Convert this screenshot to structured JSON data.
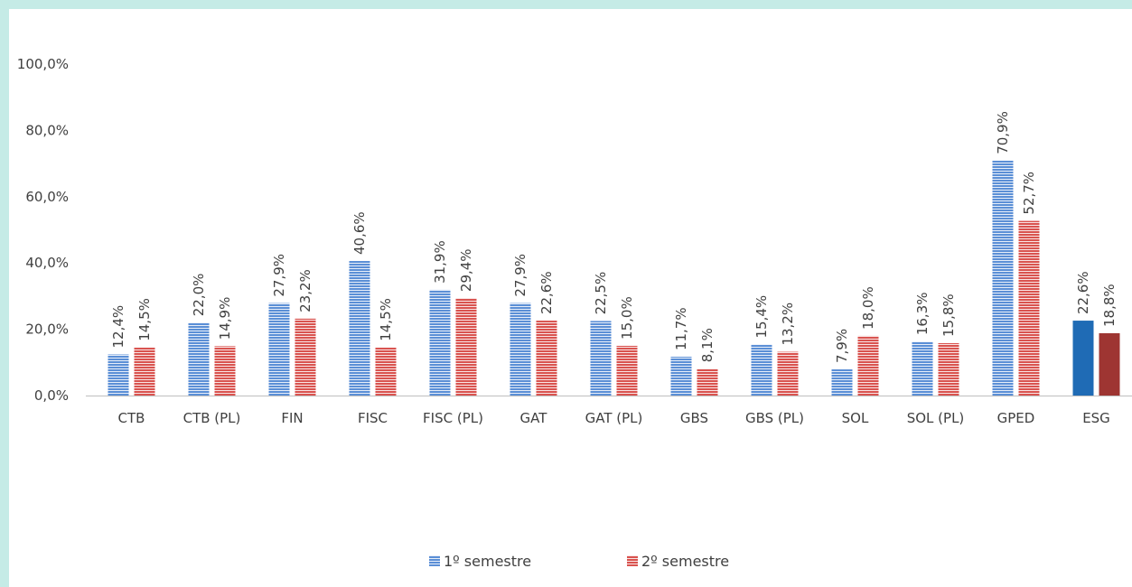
{
  "chart_data": {
    "type": "bar",
    "title": "",
    "xlabel": "",
    "ylabel": "",
    "ylim": [
      0,
      100
    ],
    "y_ticks": [
      "0,0%",
      "20,0%",
      "40,0%",
      "60,0%",
      "80,0%",
      "100,0%"
    ],
    "categories": [
      "CTB",
      "CTB (PL)",
      "FIN",
      "FISC",
      "FISC (PL)",
      "GAT",
      "GAT (PL)",
      "GBS",
      "GBS (PL)",
      "SOL",
      "SOL (PL)",
      "GPED",
      "ESG"
    ],
    "series": [
      {
        "name": "1º semestre",
        "values": [
          12.4,
          22.0,
          27.9,
          40.6,
          31.9,
          27.9,
          22.5,
          11.7,
          15.4,
          7.9,
          16.3,
          70.9,
          22.6
        ],
        "labels": [
          "12,4%",
          "22,0%",
          "27,9%",
          "40,6%",
          "31,9%",
          "27,9%",
          "22,5%",
          "11,7%",
          "15,4%",
          "7,9%",
          "16,3%",
          "70,9%",
          "22,6%"
        ],
        "color": "#4f81bd",
        "highlight_color": "#1f6bb5"
      },
      {
        "name": "2º semestre",
        "values": [
          14.5,
          14.9,
          23.2,
          14.5,
          29.4,
          22.6,
          15.0,
          8.1,
          13.2,
          18.0,
          15.8,
          52.7,
          18.8
        ],
        "labels": [
          "14,5%",
          "14,9%",
          "23,2%",
          "14,5%",
          "29,4%",
          "22,6%",
          "15,0%",
          "8,1%",
          "13,2%",
          "18,0%",
          "15,8%",
          "52,7%",
          "18,8%"
        ],
        "color": "#c0504d",
        "highlight_color": "#9e3532"
      }
    ],
    "highlight_category": "ESG",
    "grid": false,
    "legend_position": "bottom"
  }
}
